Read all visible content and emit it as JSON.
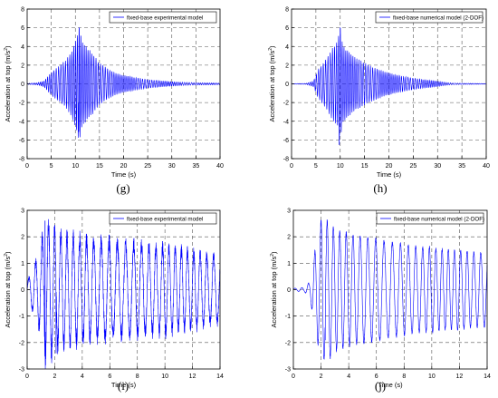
{
  "chart_data": [
    {
      "type": "line",
      "panel_label": "(g)",
      "xlabel": "Time (s)",
      "ylabel": "Acceleration at top (m/s",
      "ylabel_sup": "2",
      "ylabel_close": ")",
      "xlim": [
        0,
        40
      ],
      "ylim": [
        -8,
        8
      ],
      "xticks": [
        0,
        5,
        10,
        15,
        20,
        25,
        30,
        35,
        40
      ],
      "yticks": [
        -8,
        -6,
        -4,
        -2,
        0,
        2,
        4,
        6,
        8
      ],
      "grid": true,
      "legend_position": "top-right",
      "series": [
        {
          "name": "fixed-base experimental model",
          "color": "#0000ff",
          "envelope": [
            [
              0,
              0.05
            ],
            [
              2,
              0.1
            ],
            [
              3.5,
              0.3
            ],
            [
              5,
              1.2
            ],
            [
              6.5,
              1.8
            ],
            [
              8,
              2.5
            ],
            [
              9,
              3.2
            ],
            [
              10,
              4.5
            ],
            [
              10.8,
              6.0
            ],
            [
              11.5,
              4.3
            ],
            [
              12.5,
              3.8
            ],
            [
              13.5,
              3.2
            ],
            [
              15,
              2.2
            ],
            [
              17,
              1.5
            ],
            [
              19,
              1.0
            ],
            [
              21,
              0.8
            ],
            [
              23,
              0.6
            ],
            [
              25,
              0.45
            ],
            [
              28,
              0.3
            ],
            [
              31,
              0.2
            ],
            [
              35,
              0.12
            ],
            [
              40,
              0.08
            ]
          ],
          "peak_pos": [
            10.8,
            6.0
          ],
          "peak_neg": [
            10.7,
            -5.1
          ],
          "freq_hz": 2.4
        }
      ]
    },
    {
      "type": "line",
      "panel_label": "(h)",
      "xlabel": "Time (s)",
      "ylabel": "Acceleration at top (m/s",
      "ylabel_sup": "2",
      "ylabel_close": ")",
      "xlim": [
        0,
        40
      ],
      "ylim": [
        -8,
        8
      ],
      "xticks": [
        0,
        5,
        10,
        15,
        20,
        25,
        30,
        35,
        40
      ],
      "yticks": [
        -8,
        -6,
        -4,
        -2,
        0,
        2,
        4,
        6,
        8
      ],
      "grid": true,
      "legend_position": "top-right",
      "series": [
        {
          "name": "fixed-base numerical model (2-DOF)",
          "color": "#0000ff",
          "envelope": [
            [
              0,
              0.02
            ],
            [
              3,
              0.05
            ],
            [
              4.5,
              0.3
            ],
            [
              5.5,
              1.5
            ],
            [
              7,
              2.5
            ],
            [
              8.5,
              3.8
            ],
            [
              9.5,
              4.5
            ],
            [
              10,
              6.0
            ],
            [
              10.5,
              4.0
            ],
            [
              11.5,
              3.5
            ],
            [
              13,
              2.8
            ],
            [
              15,
              2.2
            ],
            [
              17,
              1.7
            ],
            [
              19,
              1.3
            ],
            [
              21,
              1.0
            ],
            [
              23,
              0.8
            ],
            [
              25,
              0.6
            ],
            [
              27,
              0.45
            ],
            [
              29,
              0.35
            ],
            [
              31,
              0.2
            ],
            [
              33,
              0.08
            ],
            [
              40,
              0.03
            ]
          ],
          "peak_pos": [
            10.0,
            6.0
          ],
          "peak_neg": [
            9.8,
            -6.5
          ],
          "freq_hz": 2.4
        }
      ]
    },
    {
      "type": "line",
      "panel_label": "(i)",
      "xlabel": "Time (s)",
      "ylabel": "Acceleration at top (m/s",
      "ylabel_sup": "2",
      "ylabel_close": ")",
      "xlim": [
        0,
        14
      ],
      "ylim": [
        -3,
        3
      ],
      "xticks": [
        0,
        2,
        4,
        6,
        8,
        10,
        12,
        14
      ],
      "yticks": [
        -3,
        -2,
        -1,
        0,
        1,
        2,
        3
      ],
      "grid": true,
      "legend_position": "top-right",
      "series": [
        {
          "name": "fixed-base experimental model",
          "color": "#0000ff",
          "envelope": [
            [
              0,
              0.3
            ],
            [
              0.5,
              0.9
            ],
            [
              1.0,
              1.6
            ],
            [
              1.3,
              2.6
            ],
            [
              1.8,
              2.5
            ],
            [
              2.1,
              2.1
            ],
            [
              3,
              2.0
            ],
            [
              4,
              1.9
            ],
            [
              5,
              1.8
            ],
            [
              6,
              1.8
            ],
            [
              7,
              1.7
            ],
            [
              8,
              1.7
            ],
            [
              9,
              1.6
            ],
            [
              10,
              1.6
            ],
            [
              11,
              1.5
            ],
            [
              12,
              1.4
            ],
            [
              13,
              1.3
            ],
            [
              14,
              1.2
            ]
          ],
          "peak_pos": [
            1.3,
            2.6
          ],
          "peak_neg": [
            2.1,
            -2.4
          ],
          "freq_hz": 1.95,
          "noisy": true
        }
      ]
    },
    {
      "type": "line",
      "panel_label": "(j)",
      "xlabel": "Time (s)",
      "ylabel": "Acceleration at top (m/s",
      "ylabel_sup": "2",
      "ylabel_close": ")",
      "xlim": [
        0,
        14
      ],
      "ylim": [
        -3,
        3
      ],
      "xticks": [
        0,
        2,
        4,
        6,
        8,
        10,
        12,
        14
      ],
      "yticks": [
        -3,
        -2,
        -1,
        0,
        1,
        2,
        3
      ],
      "grid": true,
      "legend_position": "top-right",
      "series": [
        {
          "name": "fixed-base numerical model (2-DOF)",
          "color": "#0000ff",
          "envelope": [
            [
              0,
              0.05
            ],
            [
              0.8,
              0.08
            ],
            [
              1.2,
              0.3
            ],
            [
              1.6,
              1.6
            ],
            [
              2.0,
              2.6
            ],
            [
              2.6,
              2.6
            ],
            [
              3,
              2.3
            ],
            [
              4,
              2.1
            ],
            [
              5,
              2.0
            ],
            [
              6,
              1.9
            ],
            [
              7,
              1.8
            ],
            [
              8,
              1.7
            ],
            [
              9,
              1.6
            ],
            [
              10,
              1.6
            ],
            [
              11,
              1.5
            ],
            [
              12,
              1.5
            ],
            [
              13,
              1.4
            ],
            [
              14,
              1.4
            ]
          ],
          "peak_pos": [
            2.0,
            2.6
          ],
          "peak_neg": [
            2.3,
            -1.9
          ],
          "freq_hz": 1.95
        }
      ]
    }
  ]
}
